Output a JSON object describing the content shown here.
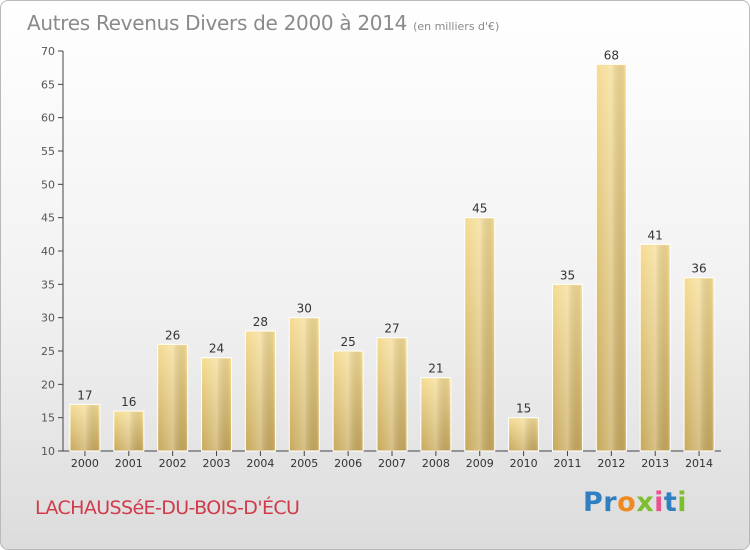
{
  "chart_data": {
    "type": "bar",
    "title": "Autres Revenus Divers de 2000 à 2014",
    "subtitle": "(en milliers d'€)",
    "categories": [
      "2000",
      "2001",
      "2002",
      "2003",
      "2004",
      "2005",
      "2006",
      "2007",
      "2008",
      "2009",
      "2010",
      "2011",
      "2012",
      "2013",
      "2014"
    ],
    "values": [
      17,
      16,
      26,
      24,
      28,
      30,
      25,
      27,
      21,
      45,
      15,
      35,
      68,
      41,
      36
    ],
    "ylim": [
      10,
      70
    ],
    "yticks": [
      10,
      15,
      20,
      25,
      30,
      35,
      40,
      45,
      50,
      55,
      60,
      65,
      70
    ],
    "grid": false,
    "bar_color": "#e8c97c",
    "axis_color": "#444444"
  },
  "footer": {
    "commune": "LACHAUSSéE-DU-BOIS-D'ÉCU",
    "logo": [
      {
        "ch": "P",
        "color": "#2f7fc1"
      },
      {
        "ch": "r",
        "color": "#2f7fc1"
      },
      {
        "ch": "o",
        "color": "#ee8a1f"
      },
      {
        "ch": "x",
        "color": "#7cbf2f"
      },
      {
        "ch": "i",
        "color": "#e9528e"
      },
      {
        "ch": "t",
        "color": "#2f7fc1"
      },
      {
        "ch": "i",
        "color": "#7cbf2f"
      }
    ]
  }
}
